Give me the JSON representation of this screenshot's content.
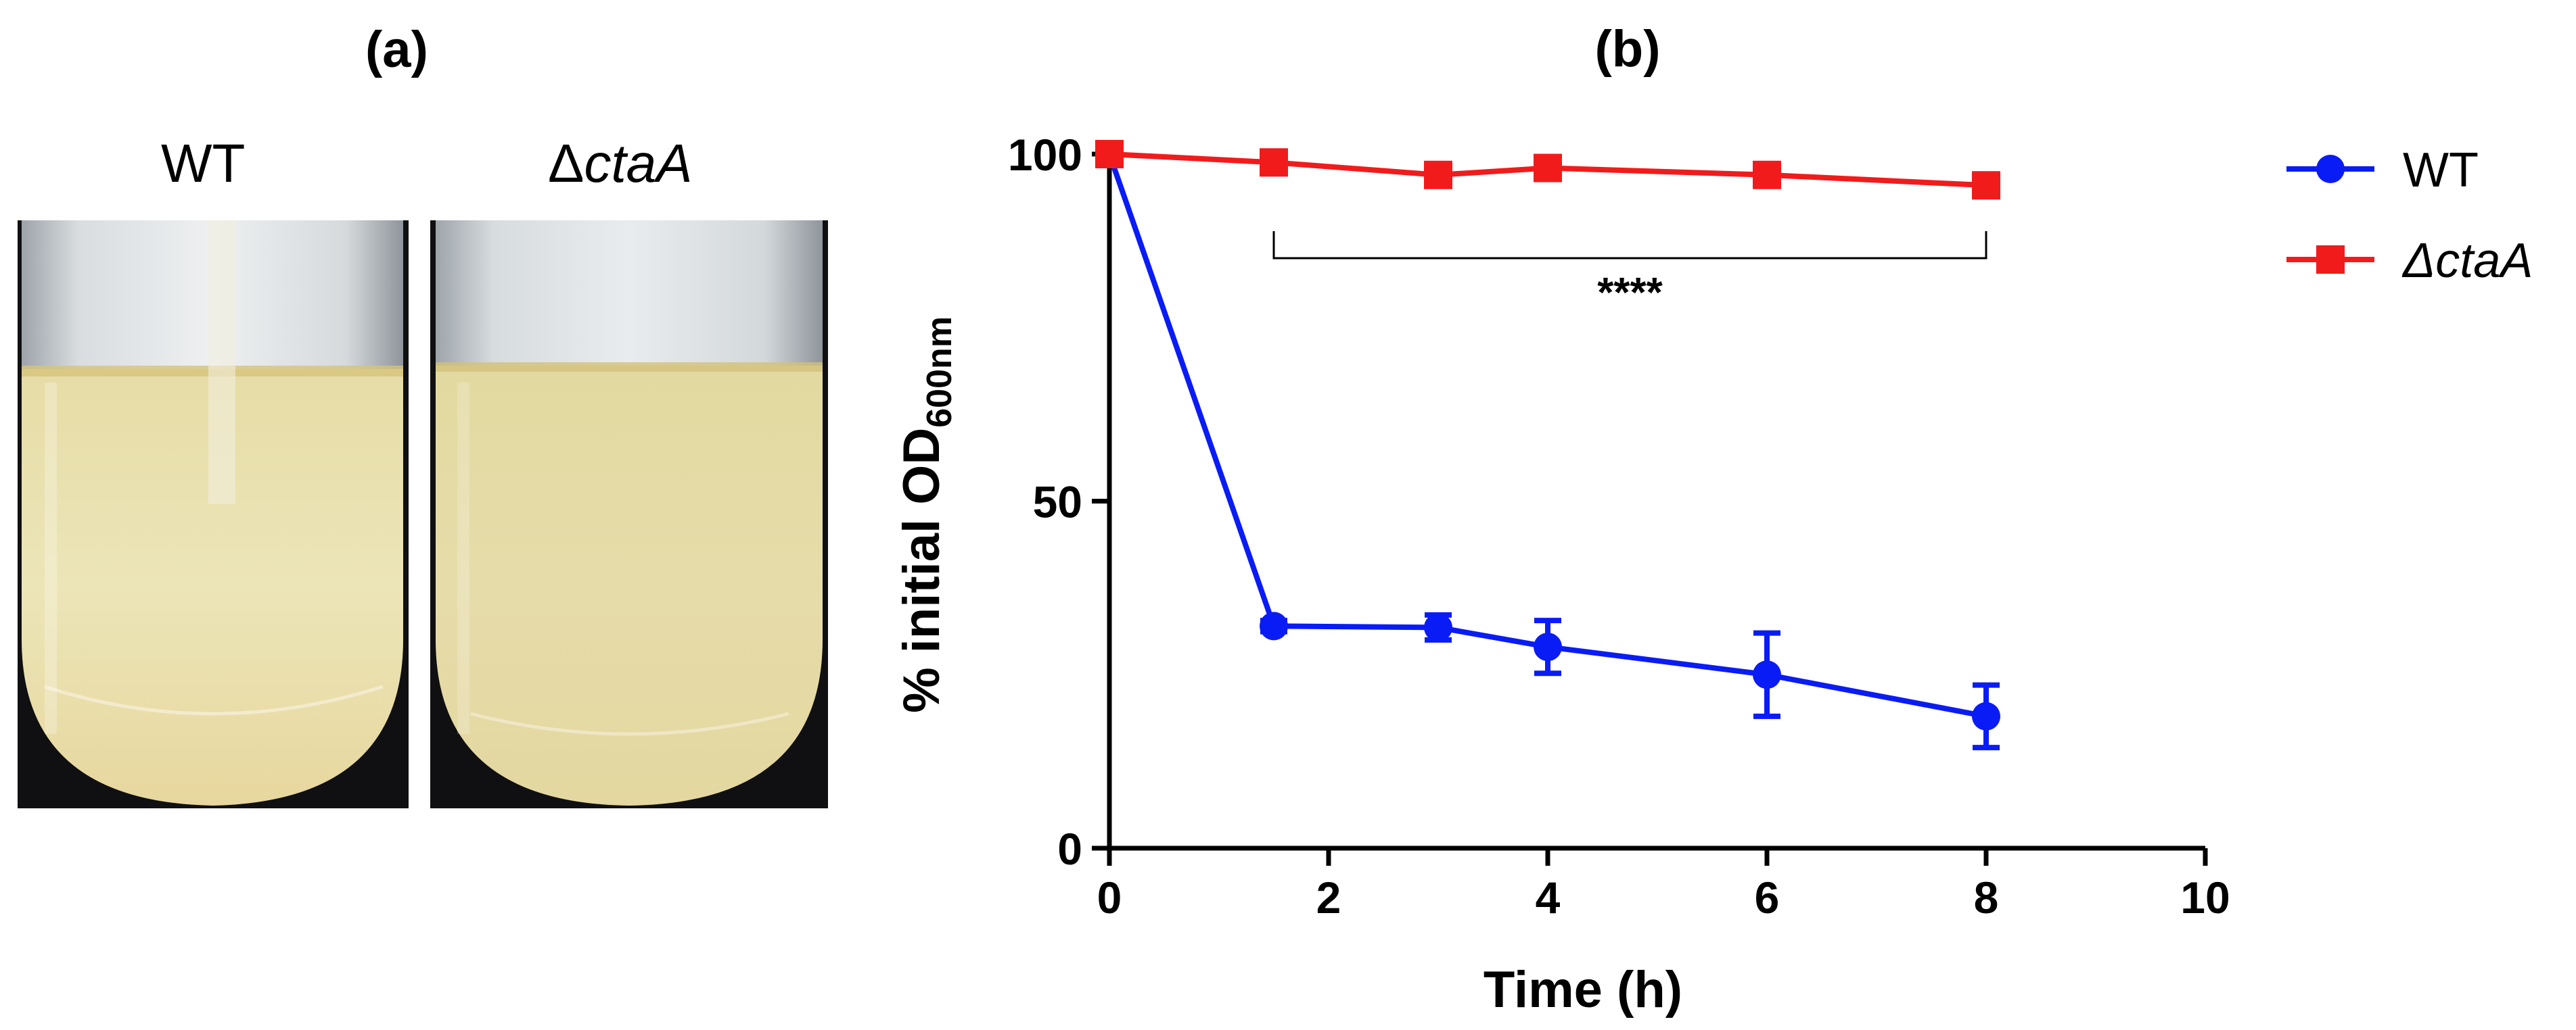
{
  "panels": {
    "a": {
      "label": "(a)",
      "tubes": [
        {
          "label": "WT",
          "italic_part": ""
        },
        {
          "label": "Δ",
          "italic_part": "ctaA"
        }
      ]
    },
    "b": {
      "label": "(b)"
    }
  },
  "chart_data": {
    "type": "line",
    "title": "(b)",
    "xlabel": "Time (h)",
    "ylabel": "% initial OD",
    "ylabel_subscript": "600nm",
    "xlim": [
      0,
      10
    ],
    "ylim": [
      0,
      100
    ],
    "xticks": [
      0,
      2,
      4,
      6,
      8,
      10
    ],
    "yticks": [
      0,
      50,
      100
    ],
    "series": [
      {
        "name": "WT",
        "color": "#0a1cf5",
        "marker": "circle",
        "x": [
          0,
          1.5,
          3,
          4,
          6,
          8
        ],
        "y": [
          100,
          32,
          31.8,
          29,
          25,
          19
        ],
        "err": [
          0,
          0.8,
          1.8,
          3.8,
          6,
          4.5
        ]
      },
      {
        "name": "ΔctaA",
        "color": "#f21b1b",
        "marker": "square",
        "x": [
          0,
          1.5,
          3,
          4,
          6,
          8
        ],
        "y": [
          100,
          98.8,
          97,
          98,
          97,
          95.5
        ],
        "err": [
          0,
          0,
          0,
          0,
          0,
          0
        ]
      }
    ],
    "annotation": {
      "text": "****",
      "x_from": 1.5,
      "x_to": 8,
      "y": 85
    },
    "legend": "top-right"
  }
}
